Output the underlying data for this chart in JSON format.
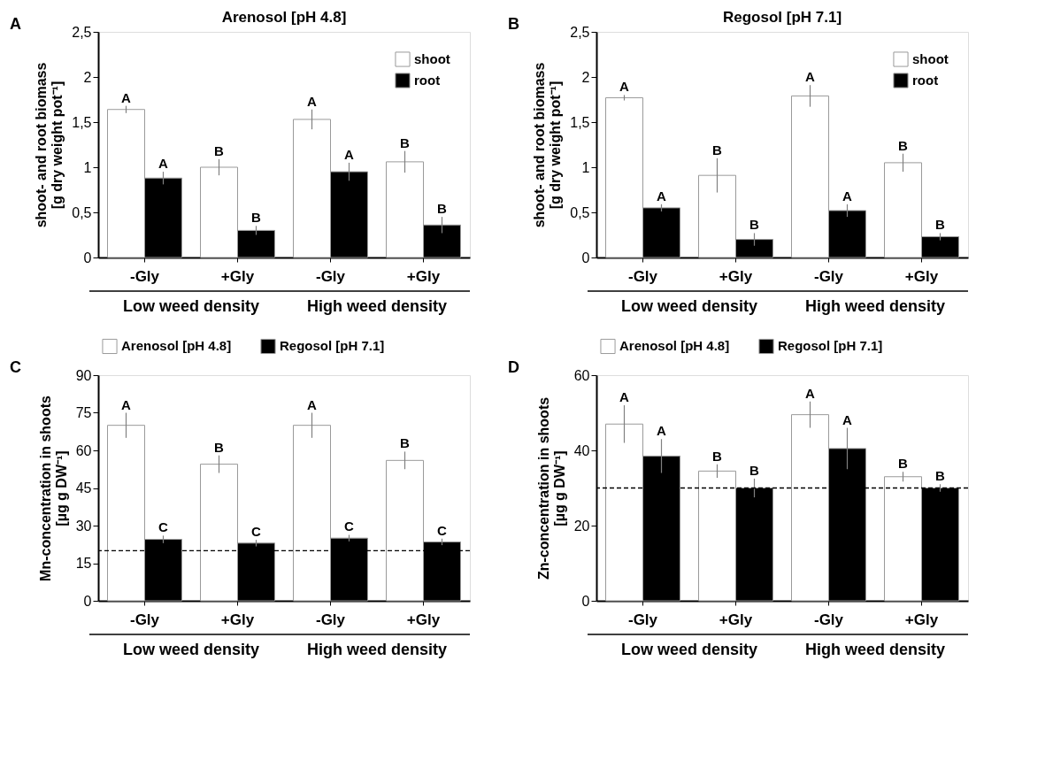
{
  "chart_data": [
    {
      "type": "bar",
      "title": "Arenosol [pH 4.8]",
      "ylabel": "shoot- and root biomass\n[g dry weight pot⁻¹]",
      "categories": [
        "-Gly",
        "+Gly",
        "-Gly",
        "+Gly"
      ],
      "series": [
        {
          "name": "shoot",
          "color": "#ffffff",
          "values": [
            1.64,
            1.0,
            1.53,
            1.06
          ],
          "errors": [
            0.04,
            0.09,
            0.11,
            0.12
          ],
          "value_labels": [
            "A",
            "B",
            "A",
            "B"
          ]
        },
        {
          "name": "root",
          "color": "#000000",
          "values": [
            0.88,
            0.3,
            0.95,
            0.36
          ],
          "errors": [
            0.07,
            0.05,
            0.1,
            0.09
          ],
          "value_labels": [
            "A",
            "B",
            "A",
            "B"
          ]
        }
      ],
      "ylim": [
        0,
        2.5
      ],
      "yticks": [
        0,
        {
          "value": 0.5,
          "label": "0,5"
        },
        1,
        {
          "value": 1.5,
          "label": "1,5"
        },
        2,
        {
          "value": 2.5,
          "label": "2,5"
        }
      ],
      "legend": "top right",
      "annotations": [
        "A",
        "Low weed density",
        "High weed density"
      ]
    },
    {
      "type": "bar",
      "title": "Regosol [pH 7.1]",
      "ylabel": "shoot- and root biomass\n[g dry weight pot⁻¹]",
      "categories": [
        "-Gly",
        "+Gly",
        "-Gly",
        "+Gly"
      ],
      "series": [
        {
          "name": "shoot",
          "color": "#ffffff",
          "values": [
            1.77,
            0.91,
            1.79,
            1.05
          ],
          "errors": [
            0.03,
            0.19,
            0.12,
            0.1
          ],
          "value_labels": [
            "A",
            "B",
            "A",
            "B"
          ]
        },
        {
          "name": "root",
          "color": "#000000",
          "values": [
            0.55,
            0.2,
            0.52,
            0.23
          ],
          "errors": [
            0.04,
            0.07,
            0.07,
            0.04
          ],
          "value_labels": [
            "A",
            "B",
            "A",
            "B"
          ]
        }
      ],
      "ylim": [
        0,
        2.5
      ],
      "yticks": [
        0,
        {
          "value": 0.5,
          "label": "0,5"
        },
        1,
        {
          "value": 1.5,
          "label": "1,5"
        },
        2,
        {
          "value": 2.5,
          "label": "2,5"
        }
      ],
      "legend": "top right",
      "annotations": [
        "B",
        "Low weed density",
        "High weed density"
      ]
    },
    {
      "type": "bar",
      "ylabel": "Mn-concentration in shoots\n[µg g DW⁻¹]",
      "categories": [
        "-Gly",
        "+Gly",
        "-Gly",
        "+Gly"
      ],
      "series": [
        {
          "name": "Arenosol [pH 4.8]",
          "color": "#ffffff",
          "values": [
            70,
            54.5,
            70,
            56
          ],
          "errors": [
            5,
            3.5,
            5,
            3.5
          ],
          "value_labels": [
            "A",
            "B",
            "A",
            "B"
          ]
        },
        {
          "name": "Regosol [pH 7.1]",
          "color": "#000000",
          "values": [
            24.5,
            23,
            25,
            23.5
          ],
          "errors": [
            1.5,
            1.3,
            1.3,
            1.3
          ],
          "value_labels": [
            "C",
            "C",
            "C",
            "C"
          ]
        }
      ],
      "ylim": [
        0,
        90
      ],
      "yticks": [
        0,
        15,
        30,
        45,
        60,
        75,
        90
      ],
      "legend": "top",
      "ref_lines": [
        {
          "axis": "y",
          "value": 20,
          "line_style": "dashed",
          "color": "#000000"
        }
      ],
      "annotations": [
        "C",
        "Low weed density",
        "High weed density"
      ]
    },
    {
      "type": "bar",
      "ylabel": "Zn-concentration in shoots\n[µg g DW⁻¹]",
      "categories": [
        "-Gly",
        "+Gly",
        "-Gly",
        "+Gly"
      ],
      "series": [
        {
          "name": "Arenosol [pH 4.8]",
          "color": "#ffffff",
          "values": [
            47,
            34.5,
            49.5,
            33
          ],
          "errors": [
            5,
            1.8,
            3.5,
            1.3
          ],
          "value_labels": [
            "A",
            "B",
            "A",
            "B"
          ]
        },
        {
          "name": "Regosol [pH 7.1]",
          "color": "#000000",
          "values": [
            38.5,
            30,
            40.5,
            30
          ],
          "errors": [
            4.5,
            2.5,
            5.5,
            1
          ],
          "value_labels": [
            "A",
            "B",
            "A",
            "B"
          ]
        }
      ],
      "ylim": [
        0,
        60
      ],
      "yticks": [
        0,
        20,
        40,
        60
      ],
      "legend": "top",
      "ref_lines": [
        {
          "axis": "y",
          "value": 30,
          "line_style": "dashed",
          "color": "#000000"
        }
      ],
      "annotations": [
        "D",
        "Low weed density",
        "High weed density"
      ]
    }
  ]
}
